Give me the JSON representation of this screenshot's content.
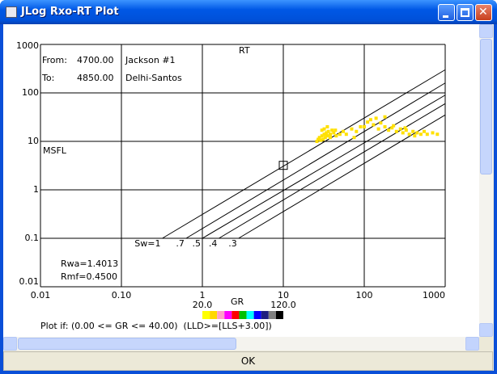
{
  "window": {
    "title": "JLog Rxo-RT Plot"
  },
  "buttons": {
    "ok": "OK"
  },
  "chart_data": {
    "type": "scatter",
    "x_label": "RT",
    "y_label": "MSFL",
    "from_label": "From:",
    "from_depth": "4700.00",
    "from_well": "Jackson #1",
    "to_label": "To:",
    "to_depth": "4850.00",
    "to_well": "Delhi-Santos",
    "rwa": "Rwa=1.4013",
    "rmf": "Rmf=0.4500",
    "log_x": true,
    "log_y": true,
    "grid": true,
    "xlim": [
      0.01,
      1000
    ],
    "ylim": [
      0.01,
      1000
    ],
    "xticks": [
      0.01,
      {
        "value": 0.1,
        "label": "0.10"
      },
      1,
      10,
      100,
      1000
    ],
    "yticks": [
      0.01,
      0.1,
      1,
      10,
      100,
      1000
    ],
    "series": [
      {
        "color": "#ffe000",
        "x": [
          26,
          27,
          28,
          29,
          30,
          31,
          32,
          33,
          34,
          35,
          36,
          38,
          40,
          42,
          45,
          30,
          35,
          32,
          38,
          44,
          50,
          55,
          60,
          70,
          75,
          80,
          90,
          100,
          110,
          120,
          130,
          140,
          150,
          160,
          180,
          200,
          220,
          250,
          280,
          300,
          330,
          360,
          400,
          450,
          500,
          550,
          600,
          700,
          800,
          180,
          230,
          320,
          420
        ],
        "values": [
          10,
          11,
          12,
          10.5,
          13,
          11,
          14,
          12,
          15,
          13,
          16,
          14,
          17,
          15,
          13,
          17,
          20,
          18,
          12,
          17,
          14,
          16,
          14,
          18,
          12,
          16,
          20,
          20,
          25,
          28,
          22,
          30,
          18,
          24,
          20,
          17,
          19,
          16,
          18,
          15,
          17,
          14,
          16,
          15,
          14,
          16,
          14,
          15,
          14,
          32,
          21,
          19,
          13
        ]
      }
    ],
    "marker": {
      "x": 10,
      "y": 3.2
    },
    "sw_lines": [
      {
        "label": "Sw=1",
        "x": [
          0.32,
          1000
        ],
        "y": [
          0.1,
          300
        ]
      },
      {
        "label": ".7",
        "x": [
          0.63,
          1000
        ],
        "y": [
          0.1,
          160
        ]
      },
      {
        "label": ".5",
        "x": [
          1.0,
          1000
        ],
        "y": [
          0.1,
          90
        ]
      },
      {
        "label": ".4",
        "x": [
          1.6,
          1000
        ],
        "y": [
          0.1,
          60
        ]
      },
      {
        "label": ".3",
        "x": [
          2.8,
          1000
        ],
        "y": [
          0.1,
          35
        ]
      }
    ],
    "color_label": "GR",
    "color_lim": [
      20,
      120
    ],
    "color_ticks": [
      {
        "value": 20,
        "label": "20.0"
      },
      {
        "value": 120,
        "label": "120.0"
      }
    ],
    "color_scale": [
      "#ffff00",
      "#ffd800",
      "#ffa0c8",
      "#ff00ff",
      "#ff0000",
      "#00c000",
      "#00ffff",
      "#0000ff",
      "#202080",
      "#808080",
      "#000000"
    ],
    "filter": "Plot if: (0.00 <= GR <= 40.00)  (LLD>=[LLS+3.00])"
  }
}
